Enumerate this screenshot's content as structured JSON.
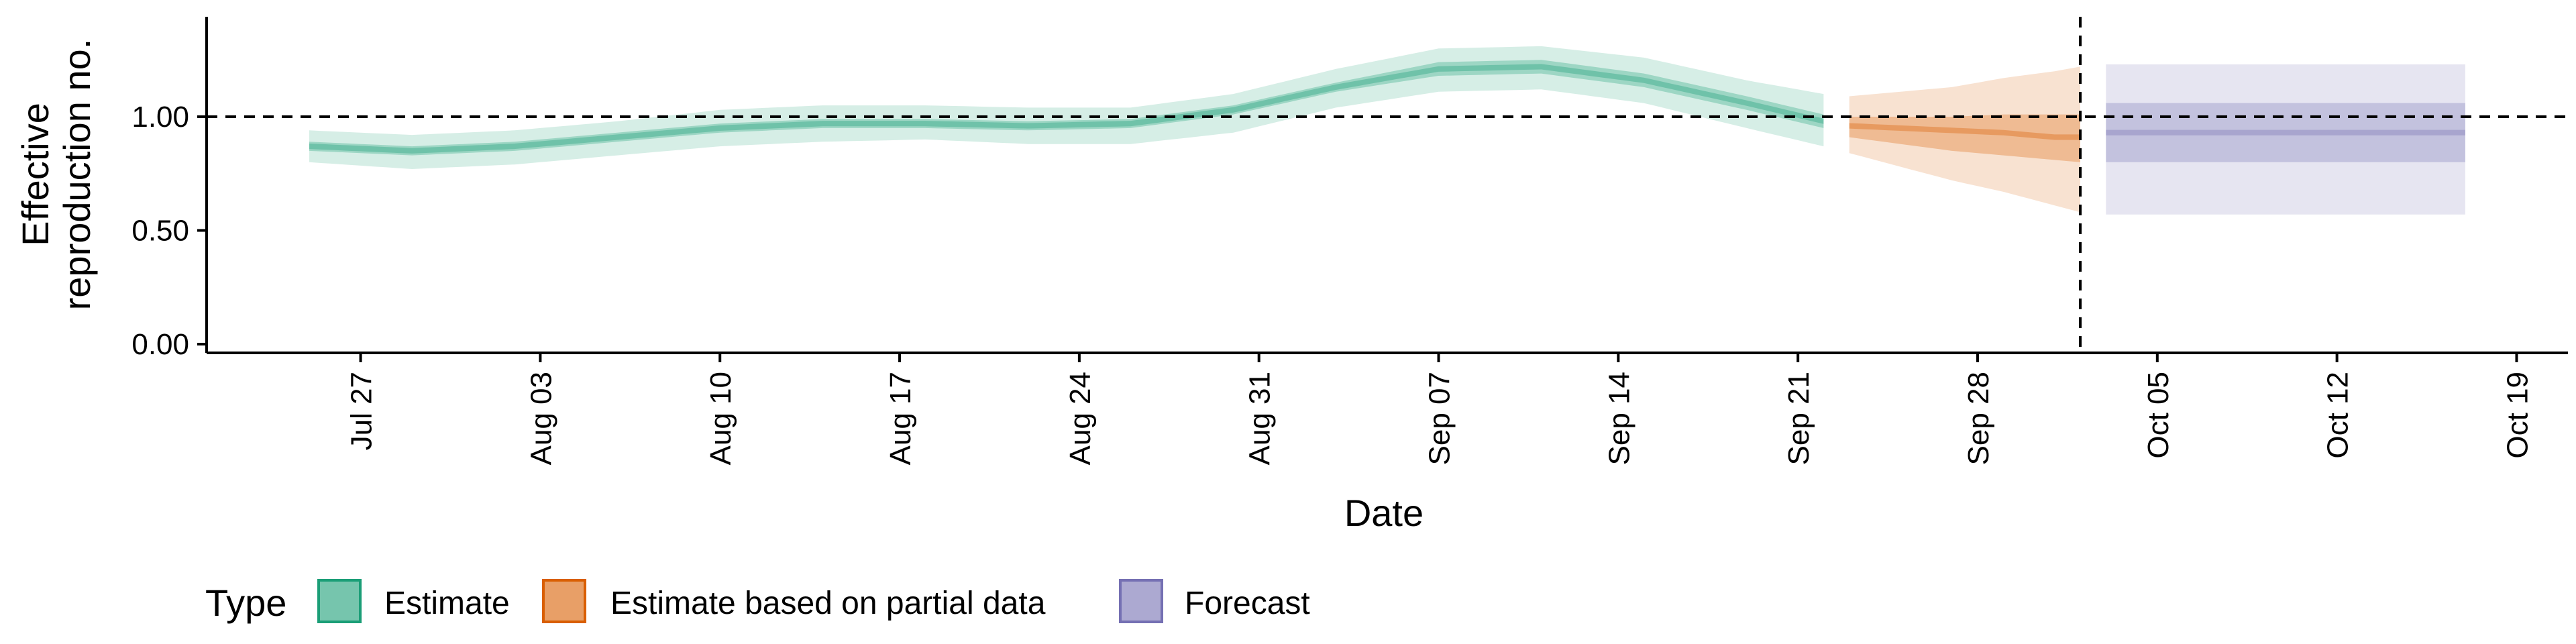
{
  "chart_data": {
    "type": "area",
    "xlabel": "Date",
    "ylabel_line1": "Effective",
    "ylabel_line2": "reproduction no.",
    "x_ticks": [
      "Jul 27",
      "Aug 03",
      "Aug 10",
      "Aug 17",
      "Aug 24",
      "Aug 31",
      "Sep 07",
      "Sep 14",
      "Sep 21",
      "Sep 28",
      "Oct 05",
      "Oct 12",
      "Oct 19"
    ],
    "y_ticks": [
      "0.00",
      "0.50",
      "1.00"
    ],
    "ylim": [
      0,
      1.4
    ],
    "xlim": [
      "2020-07-21",
      "2020-10-21"
    ],
    "reference_line_y": 1.0,
    "forecast_date_line": "2020-10-02",
    "grid": false,
    "legend_position": "bottom",
    "legend_title": "Type",
    "legend_entries": [
      {
        "label": "Estimate",
        "color": "#1b9e77"
      },
      {
        "label": "Estimate based on partial data",
        "color": "#d95f02"
      },
      {
        "label": "Forecast",
        "color": "#7570b3"
      }
    ],
    "series": [
      {
        "name": "Estimate",
        "color": "#1b9e77",
        "x": [
          "2020-07-25",
          "2020-07-29",
          "2020-08-02",
          "2020-08-06",
          "2020-08-10",
          "2020-08-14",
          "2020-08-18",
          "2020-08-22",
          "2020-08-26",
          "2020-08-30",
          "2020-09-03",
          "2020-09-07",
          "2020-09-11",
          "2020-09-15",
          "2020-09-19",
          "2020-09-22"
        ],
        "median": [
          0.87,
          0.85,
          0.87,
          0.91,
          0.95,
          0.97,
          0.97,
          0.96,
          0.97,
          1.03,
          1.13,
          1.21,
          1.22,
          1.16,
          1.06,
          0.98
        ],
        "lower_50": [
          0.85,
          0.83,
          0.85,
          0.89,
          0.93,
          0.95,
          0.95,
          0.94,
          0.95,
          1.01,
          1.11,
          1.18,
          1.19,
          1.13,
          1.03,
          0.95
        ],
        "upper_50": [
          0.89,
          0.87,
          0.89,
          0.93,
          0.97,
          0.99,
          0.99,
          0.98,
          0.99,
          1.05,
          1.15,
          1.24,
          1.25,
          1.19,
          1.09,
          1.01
        ],
        "lower_90": [
          0.8,
          0.77,
          0.79,
          0.83,
          0.87,
          0.89,
          0.9,
          0.88,
          0.88,
          0.93,
          1.04,
          1.11,
          1.12,
          1.06,
          0.95,
          0.87
        ],
        "upper_90": [
          0.94,
          0.92,
          0.94,
          0.98,
          1.03,
          1.05,
          1.05,
          1.04,
          1.04,
          1.1,
          1.21,
          1.3,
          1.31,
          1.26,
          1.16,
          1.1
        ]
      },
      {
        "name": "Estimate based on partial data",
        "color": "#d95f02",
        "x": [
          "2020-09-23",
          "2020-09-25",
          "2020-09-27",
          "2020-09-29",
          "2020-10-01",
          "2020-10-02"
        ],
        "median": [
          0.96,
          0.95,
          0.94,
          0.93,
          0.91,
          0.91
        ],
        "lower_50": [
          0.91,
          0.88,
          0.85,
          0.83,
          0.81,
          0.8
        ],
        "upper_50": [
          1.0,
          1.0,
          1.0,
          1.01,
          1.01,
          1.01
        ],
        "lower_90": [
          0.84,
          0.78,
          0.72,
          0.67,
          0.61,
          0.58
        ],
        "upper_90": [
          1.09,
          1.11,
          1.13,
          1.17,
          1.2,
          1.22
        ]
      },
      {
        "name": "Forecast",
        "color": "#7570b3",
        "x": [
          "2020-10-03",
          "2020-10-17"
        ],
        "median": [
          0.93,
          0.93
        ],
        "lower_50": [
          0.8,
          0.8
        ],
        "upper_50": [
          1.06,
          1.06
        ],
        "lower_90": [
          0.57,
          0.57
        ],
        "upper_90": [
          1.23,
          1.23
        ]
      }
    ]
  }
}
